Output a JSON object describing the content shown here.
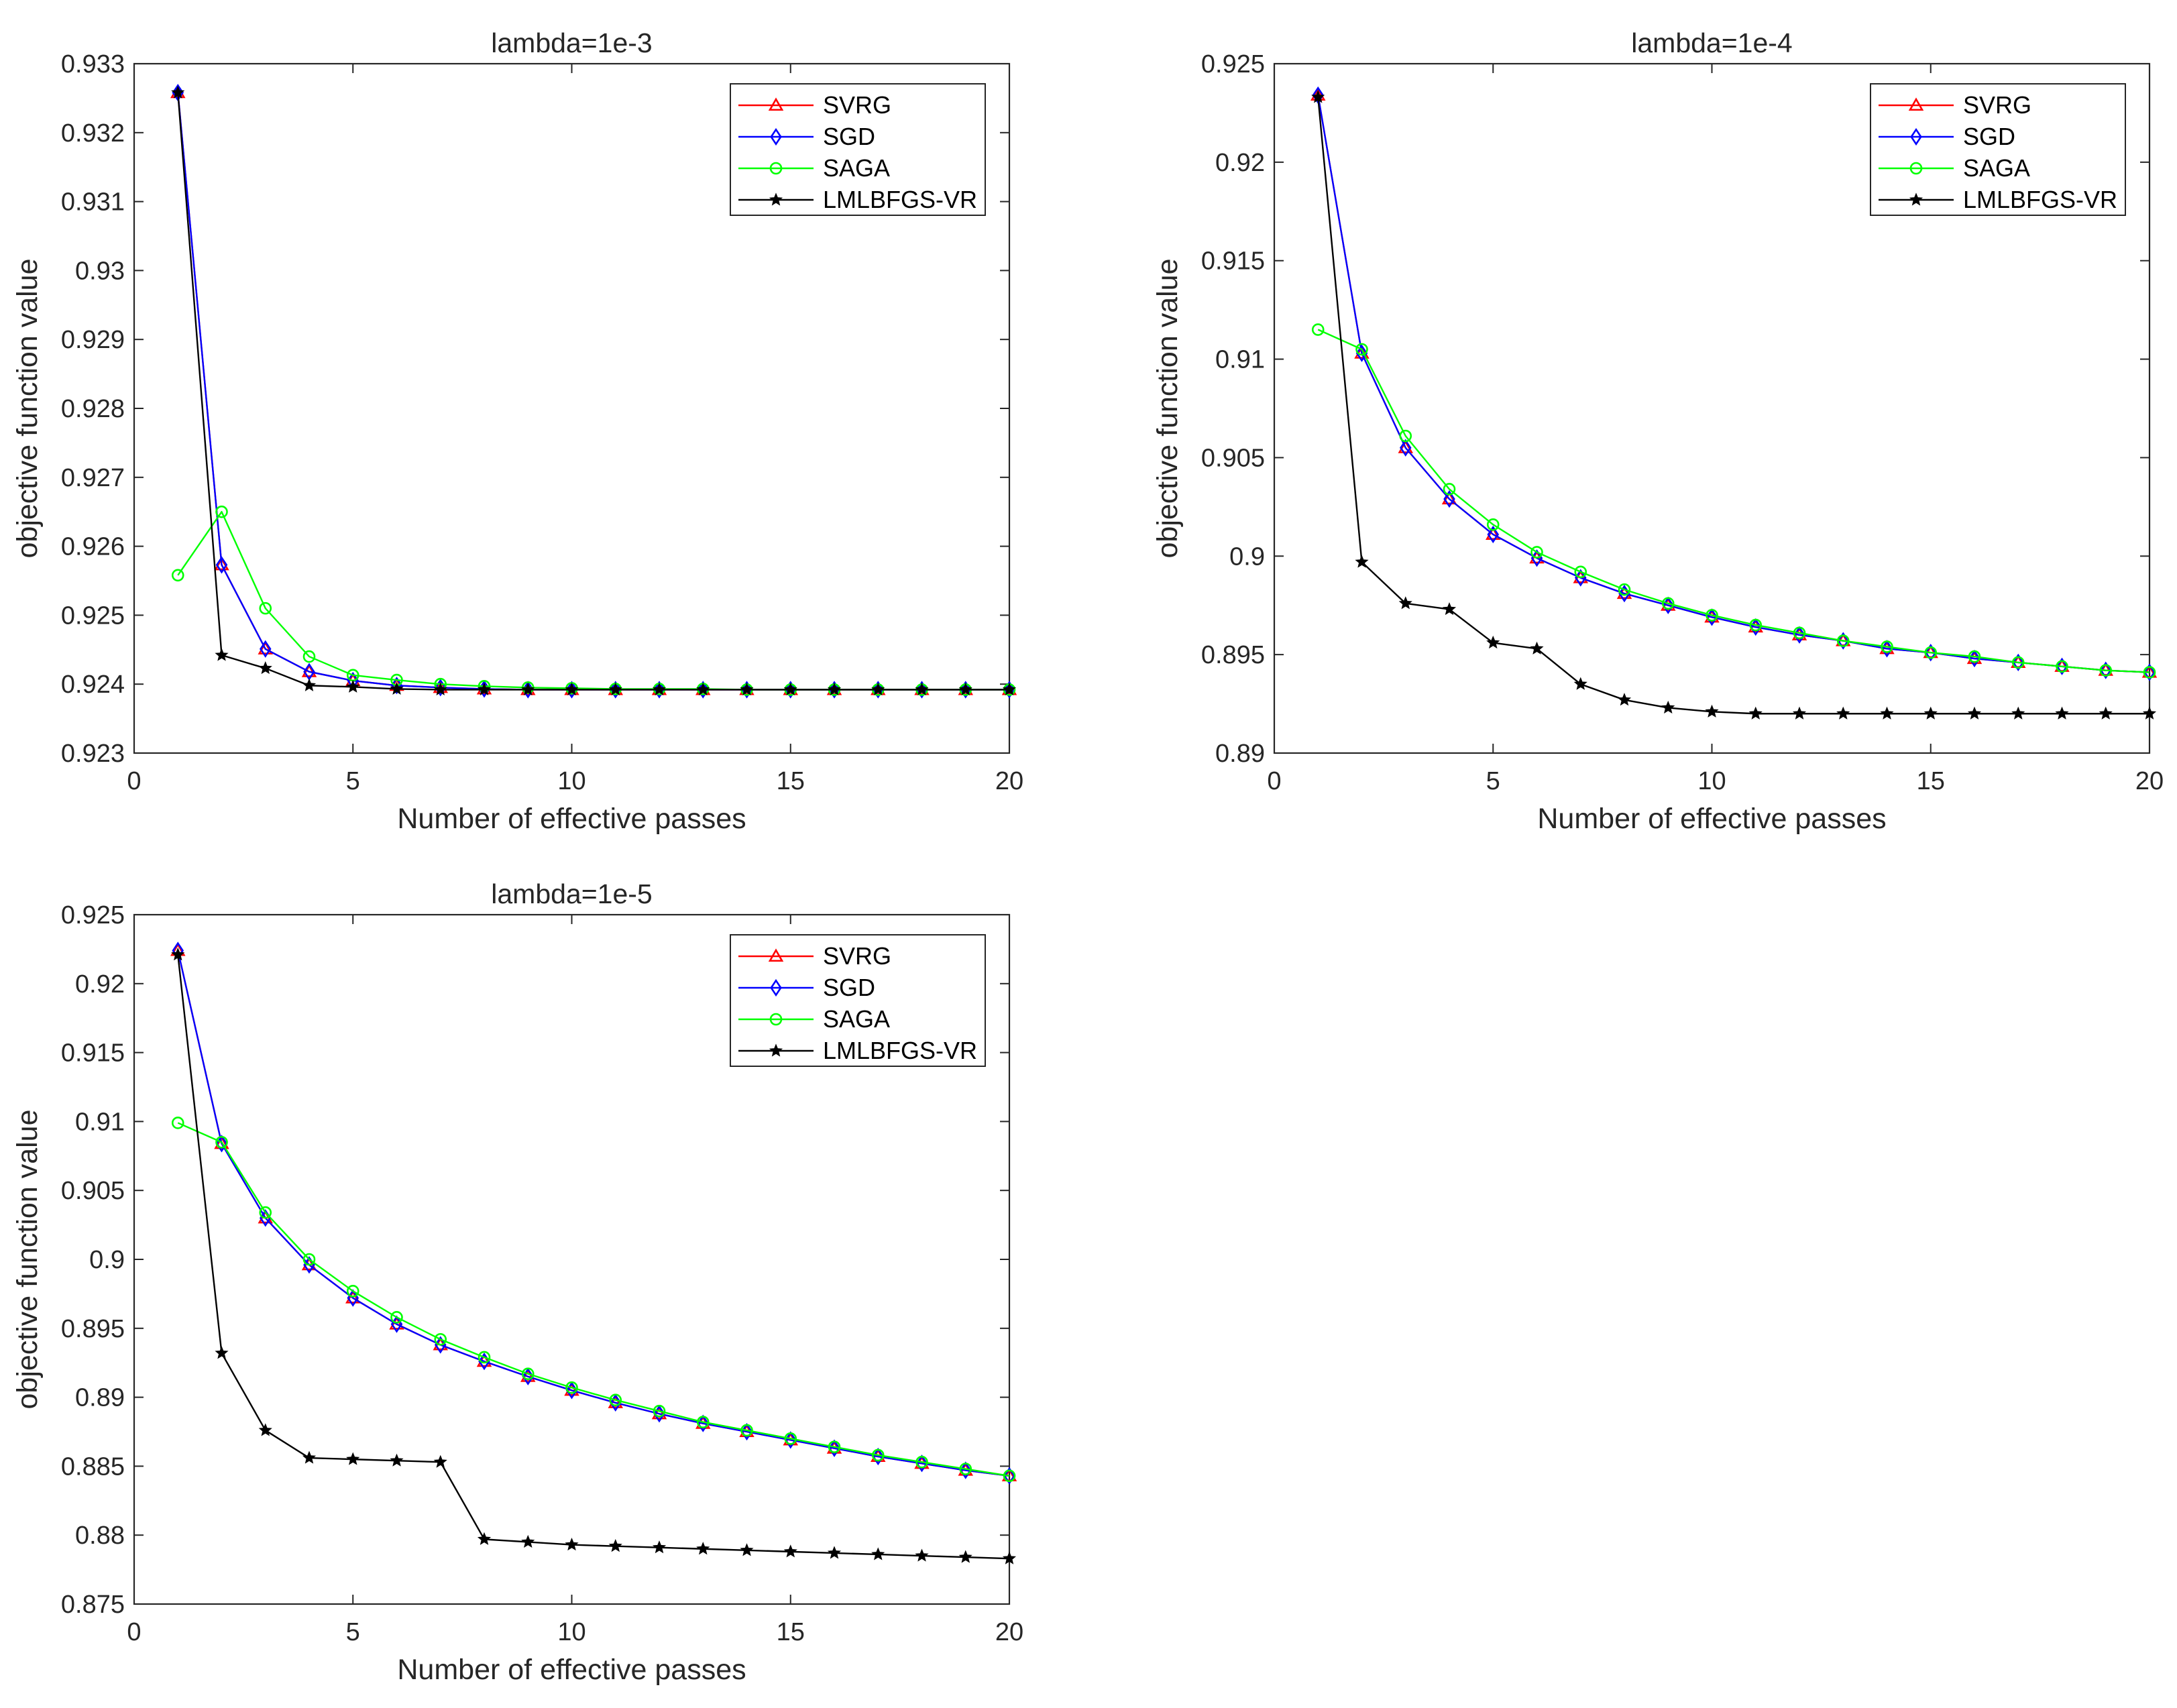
{
  "chart_data": [
    {
      "type": "line",
      "title": "lambda=1e-3",
      "xlabel": "Number of effective passes",
      "ylabel": "objective function value",
      "xlim": [
        0,
        20
      ],
      "ylim": [
        0.923,
        0.933
      ],
      "xticks": [
        0,
        5,
        10,
        15,
        20
      ],
      "xtick_labels": [
        "0",
        "5",
        "10",
        "15",
        "20"
      ],
      "yticks": [
        0.923,
        0.924,
        0.925,
        0.926,
        0.927,
        0.928,
        0.929,
        0.93,
        0.931,
        0.932,
        0.933
      ],
      "ytick_labels": [
        "0.923",
        "0.924",
        "0.925",
        "0.926",
        "0.927",
        "0.928",
        "0.929",
        "0.93",
        "0.931",
        "0.932",
        "0.933"
      ],
      "legend_position": "top-right",
      "x": [
        1,
        2,
        3,
        4,
        5,
        6,
        7,
        8,
        9,
        10,
        11,
        12,
        13,
        14,
        15,
        16,
        17,
        18,
        19,
        20
      ],
      "series": [
        {
          "name": "SVRG",
          "color": "#ff0000",
          "marker": "triangle",
          "values": [
            0.93258,
            0.92573,
            0.92451,
            0.92418,
            0.92405,
            0.92398,
            0.92395,
            0.92393,
            0.92392,
            0.92392,
            0.92392,
            0.92392,
            0.92392,
            0.92392,
            0.92392,
            0.92392,
            0.92392,
            0.92392,
            0.92392,
            0.92392
          ]
        },
        {
          "name": "SGD",
          "color": "#0000ff",
          "marker": "diamond",
          "values": [
            0.93258,
            0.92573,
            0.92451,
            0.92418,
            0.92405,
            0.92398,
            0.92395,
            0.92393,
            0.92392,
            0.92392,
            0.92392,
            0.92392,
            0.92392,
            0.92392,
            0.92392,
            0.92392,
            0.92392,
            0.92392,
            0.92392,
            0.92392
          ]
        },
        {
          "name": "SAGA",
          "color": "#00ff00",
          "marker": "circle",
          "values": [
            0.92558,
            0.9265,
            0.9251,
            0.9244,
            0.92413,
            0.92406,
            0.924,
            0.92397,
            0.92395,
            0.92394,
            0.92393,
            0.92393,
            0.92393,
            0.92392,
            0.92392,
            0.92392,
            0.92392,
            0.92392,
            0.92392,
            0.92392
          ]
        },
        {
          "name": "LMLBFGS-VR",
          "color": "#000000",
          "marker": "star",
          "values": [
            0.93258,
            0.92442,
            0.92423,
            0.92398,
            0.92396,
            0.92393,
            0.92392,
            0.92392,
            0.92392,
            0.92392,
            0.92392,
            0.92392,
            0.92392,
            0.92392,
            0.92392,
            0.92392,
            0.92392,
            0.92392,
            0.92392,
            0.92392
          ]
        }
      ]
    },
    {
      "type": "line",
      "title": "lambda=1e-4",
      "xlabel": "Number of effective passes",
      "ylabel": "objective function value",
      "xlim": [
        0,
        20
      ],
      "ylim": [
        0.89,
        0.925
      ],
      "xticks": [
        0,
        5,
        10,
        15,
        20
      ],
      "xtick_labels": [
        "0",
        "5",
        "10",
        "15",
        "20"
      ],
      "yticks": [
        0.89,
        0.895,
        0.9,
        0.905,
        0.91,
        0.915,
        0.92,
        0.925
      ],
      "ytick_labels": [
        "0.89",
        "0.895",
        "0.9",
        "0.905",
        "0.91",
        "0.915",
        "0.92",
        "0.925"
      ],
      "legend_position": "top-right",
      "x": [
        1,
        2,
        3,
        4,
        5,
        6,
        7,
        8,
        9,
        10,
        11,
        12,
        13,
        14,
        15,
        16,
        17,
        18,
        19,
        20
      ],
      "series": [
        {
          "name": "SVRG",
          "color": "#ff0000",
          "marker": "triangle",
          "values": [
            0.9234,
            0.9103,
            0.9055,
            0.9029,
            0.9011,
            0.8999,
            0.8989,
            0.8981,
            0.8975,
            0.8969,
            0.8964,
            0.896,
            0.8957,
            0.8953,
            0.8951,
            0.8948,
            0.8946,
            0.8944,
            0.8942,
            0.8941
          ]
        },
        {
          "name": "SGD",
          "color": "#0000ff",
          "marker": "diamond",
          "values": [
            0.9234,
            0.9103,
            0.9055,
            0.9029,
            0.9011,
            0.8999,
            0.8989,
            0.8981,
            0.8975,
            0.8969,
            0.8964,
            0.896,
            0.8957,
            0.8953,
            0.8951,
            0.8948,
            0.8946,
            0.8944,
            0.8942,
            0.8941
          ]
        },
        {
          "name": "SAGA",
          "color": "#00ff00",
          "marker": "circle",
          "values": [
            0.9115,
            0.9105,
            0.9061,
            0.9034,
            0.9016,
            0.9002,
            0.8992,
            0.8983,
            0.8976,
            0.897,
            0.8965,
            0.8961,
            0.8957,
            0.8954,
            0.8951,
            0.8949,
            0.8946,
            0.8944,
            0.8942,
            0.8941
          ]
        },
        {
          "name": "LMLBFGS-VR",
          "color": "#000000",
          "marker": "star",
          "values": [
            0.9233,
            0.8997,
            0.8976,
            0.8973,
            0.8956,
            0.8953,
            0.8935,
            0.8927,
            0.8923,
            0.8921,
            0.892,
            0.892,
            0.892,
            0.892,
            0.892,
            0.892,
            0.892,
            0.892,
            0.892,
            0.892
          ]
        }
      ]
    },
    {
      "type": "line",
      "title": "lambda=1e-5",
      "xlabel": "Number of effective passes",
      "ylabel": "objective function value",
      "xlim": [
        0,
        20
      ],
      "ylim": [
        0.875,
        0.925
      ],
      "xticks": [
        0,
        5,
        10,
        15,
        20
      ],
      "xtick_labels": [
        "0",
        "5",
        "10",
        "15",
        "20"
      ],
      "yticks": [
        0.875,
        0.88,
        0.885,
        0.89,
        0.895,
        0.9,
        0.905,
        0.91,
        0.915,
        0.92,
        0.925
      ],
      "ytick_labels": [
        "0.875",
        "0.88",
        "0.885",
        "0.89",
        "0.895",
        "0.9",
        "0.905",
        "0.91",
        "0.915",
        "0.92",
        "0.925"
      ],
      "legend_position": "top-right",
      "x": [
        1,
        2,
        3,
        4,
        5,
        6,
        7,
        8,
        9,
        10,
        11,
        12,
        13,
        14,
        15,
        16,
        17,
        18,
        19,
        20
      ],
      "series": [
        {
          "name": "SVRG",
          "color": "#ff0000",
          "marker": "triangle",
          "values": [
            0.9224,
            0.9084,
            0.903,
            0.8996,
            0.8972,
            0.8953,
            0.8938,
            0.8926,
            0.8915,
            0.8905,
            0.8896,
            0.8888,
            0.8881,
            0.8875,
            0.8869,
            0.8863,
            0.8857,
            0.8852,
            0.8847,
            0.8843
          ]
        },
        {
          "name": "SGD",
          "color": "#0000ff",
          "marker": "diamond",
          "values": [
            0.9224,
            0.9084,
            0.903,
            0.8996,
            0.8972,
            0.8953,
            0.8938,
            0.8926,
            0.8915,
            0.8905,
            0.8896,
            0.8888,
            0.8881,
            0.8875,
            0.8869,
            0.8863,
            0.8857,
            0.8852,
            0.8847,
            0.8843
          ]
        },
        {
          "name": "SAGA",
          "color": "#00ff00",
          "marker": "circle",
          "values": [
            0.9099,
            0.9085,
            0.9034,
            0.9,
            0.8977,
            0.8958,
            0.8942,
            0.8929,
            0.8917,
            0.8907,
            0.8898,
            0.889,
            0.8882,
            0.8876,
            0.887,
            0.8864,
            0.8858,
            0.8853,
            0.8848,
            0.8843
          ]
        },
        {
          "name": "LMLBFGS-VR",
          "color": "#000000",
          "marker": "star",
          "values": [
            0.9221,
            0.8932,
            0.8876,
            0.8856,
            0.8855,
            0.8854,
            0.8853,
            0.8797,
            0.8795,
            0.8793,
            0.8792,
            0.8791,
            0.879,
            0.8789,
            0.8788,
            0.8787,
            0.8786,
            0.8785,
            0.8784,
            0.8783
          ]
        }
      ]
    }
  ]
}
